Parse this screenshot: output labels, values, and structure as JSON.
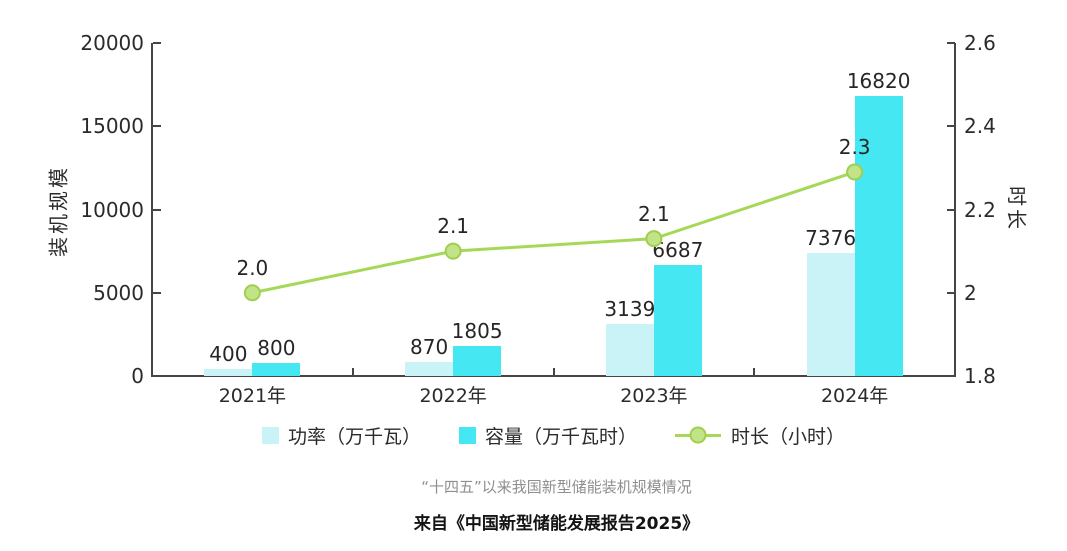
{
  "figure": {
    "caption": "“十四五”以来我国新型储能装机规模情况",
    "source": "来自《中国新型储能发展报告2025》"
  },
  "colors": {
    "power_bar": "#c9f3f7",
    "capacity_bar": "#45e7f2",
    "duration_line": "#a6d857",
    "marker_fill": "#c2e387",
    "marker_stroke": "#9fcf4f",
    "axis": "#454545",
    "text": "#2b2b2b",
    "caption_gray": "#8f8f8f"
  },
  "chart_data": {
    "type": "bar",
    "subtype": "grouped-bars-with-line-overlay",
    "title": "“十四五”以来我国新型储能装机规模情况",
    "xlabel": "",
    "ylabel": "装机规模",
    "y2label": "时长",
    "grid": false,
    "legend_position": "bottom",
    "categories": [
      "2021年",
      "2022年",
      "2023年",
      "2024年"
    ],
    "series": [
      {
        "name": "功率（万千瓦）",
        "type": "bar",
        "axis": "left",
        "color": "#c9f3f7",
        "values": [
          400,
          870,
          3139,
          7376
        ]
      },
      {
        "name": "容量（万千瓦时）",
        "type": "bar",
        "axis": "left",
        "color": "#45e7f2",
        "values": [
          800,
          1805,
          6687,
          16820
        ]
      },
      {
        "name": "时长（小时）",
        "type": "line",
        "axis": "right",
        "color": "#a6d857",
        "marker_fill": "#c2e387",
        "marker_stroke": "#9fcf4f",
        "values": [
          2.0,
          2.1,
          2.1,
          2.3
        ],
        "value_labels": [
          "2.0",
          "2.1",
          "2.1",
          "2.3"
        ],
        "plot_values": [
          2.0,
          2.1,
          2.13,
          2.29
        ]
      }
    ],
    "left_axis": {
      "label": "装机规模",
      "min": 0,
      "max": 20000,
      "ticks": [
        0,
        5000,
        10000,
        15000,
        20000
      ],
      "tick_labels": [
        "0",
        "5000",
        "10000",
        "15000",
        "20000"
      ]
    },
    "right_axis": {
      "label": "时长",
      "min": 1.8,
      "max": 2.6,
      "ticks": [
        1.8,
        2.0,
        2.2,
        2.4,
        2.6
      ],
      "tick_labels": [
        "1.8",
        "2",
        "2.2",
        "2.4",
        "2.6"
      ]
    }
  }
}
